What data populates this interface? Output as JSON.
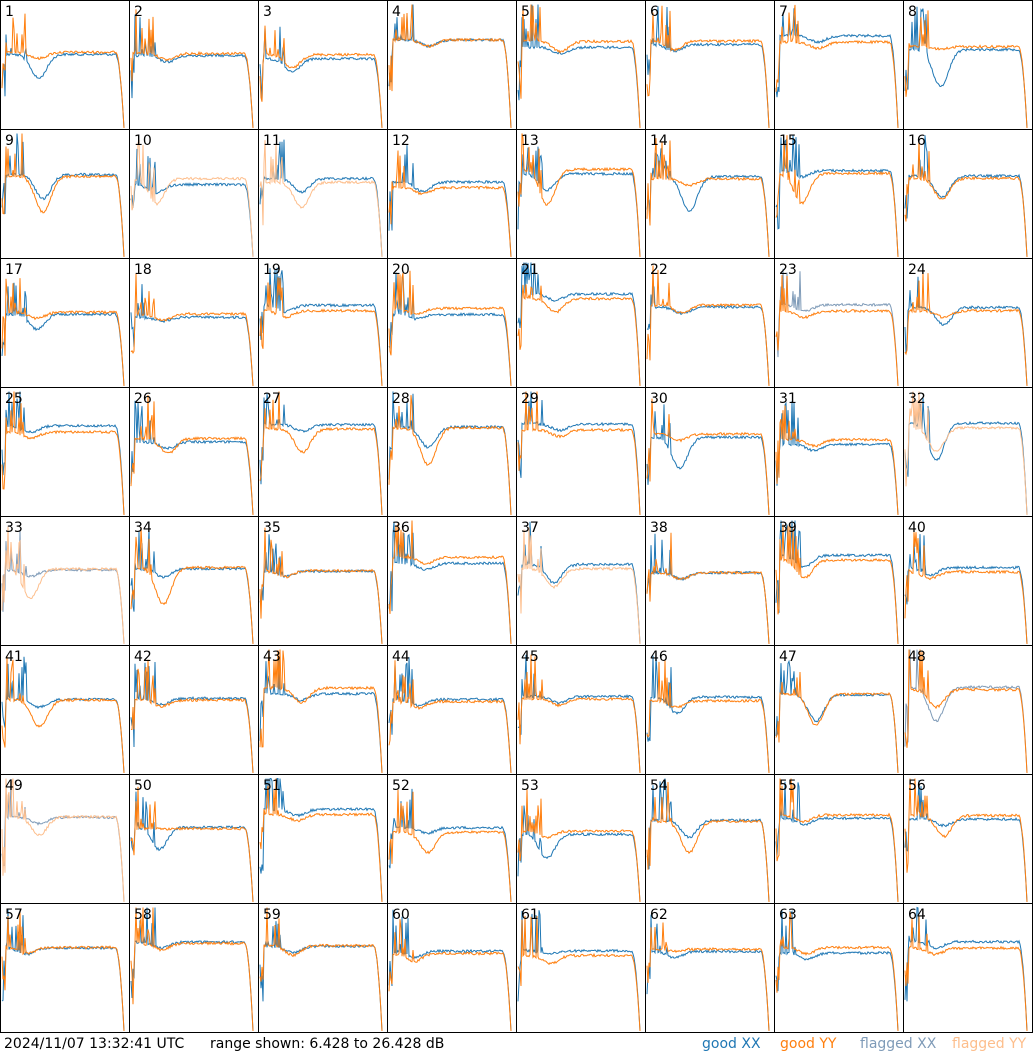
{
  "panels": [
    "1",
    "2",
    "3",
    "4",
    "5",
    "6",
    "7",
    "8",
    "9",
    "10",
    "11",
    "12",
    "13",
    "14",
    "15",
    "16",
    "17",
    "18",
    "19",
    "20",
    "21",
    "22",
    "23",
    "24",
    "25",
    "26",
    "27",
    "28",
    "29",
    "30",
    "31",
    "32",
    "33",
    "34",
    "35",
    "36",
    "37",
    "38",
    "39",
    "40",
    "41",
    "42",
    "43",
    "44",
    "45",
    "46",
    "47",
    "48",
    "49",
    "50",
    "51",
    "52",
    "53",
    "54",
    "55",
    "56",
    "57",
    "58",
    "59",
    "60",
    "61",
    "62",
    "63",
    "64"
  ],
  "timestamp": "2024/11/07 13:32:41 UTC",
  "range": "range shown: 6.428 to 26.428 dB",
  "legend": [
    {
      "name": "good XX",
      "color": "#1f77b4"
    },
    {
      "name": "good YY",
      "color": "#ff7f0e"
    },
    {
      "name": "flagged XX",
      "color": "#7f9bb8"
    },
    {
      "name": "flagged YY",
      "color": "#fdbe8c"
    }
  ]
}
